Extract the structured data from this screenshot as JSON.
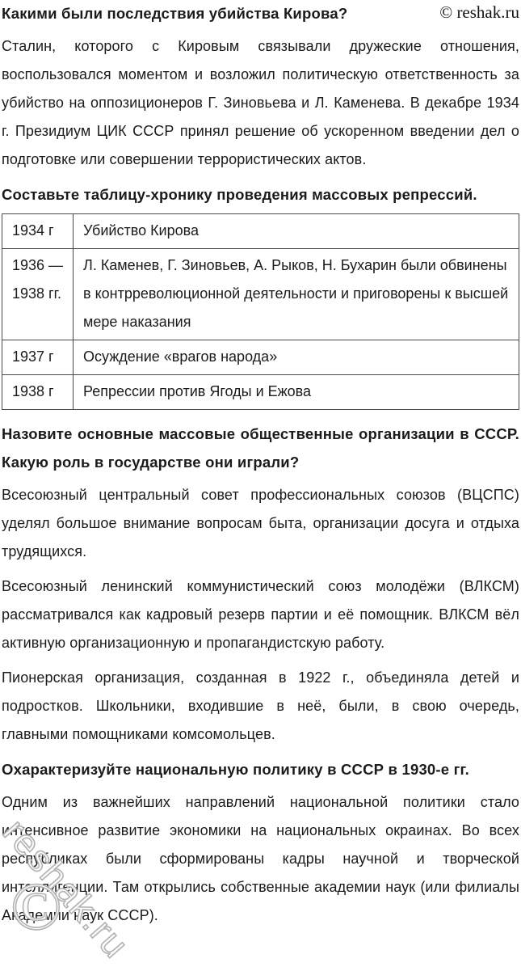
{
  "header": {
    "question": "Какими были последствия убийства Кирова?",
    "brand": "© reshak.ru"
  },
  "headings": {
    "table_task": "Составьте таблицу-хронику проведения массовых репрессий.",
    "organizations": "Назовите основные массовые общественные организации в СССР. Какую роль в государстве они играли?",
    "national_policy": "Охарактеризуйте национальную политику в СССР в 1930-е гг."
  },
  "paragraphs": {
    "kirov_consequences": "Сталин, которого с Кировым связывали дружеские отношения, воспользовался моментом и возложил политическую ответственность за убийство на оппозиционеров Г. Зиновьева и Л. Каменева. В декабре 1934 г. Президиум ЦИК СССР принял решение об ускоренном введении дел о подготовке или совершении террористических актов.",
    "vtssps": "Всесоюзный центральный совет профессиональных союзов (ВЦСПС) уделял большое внимание вопросам быта, организации досуга и отдыха трудящихся.",
    "vlksm": "Всесоюзный ленинский коммунистический союз молодёжи (ВЛКСМ) рассматривался как кадровый резерв партии и её помощник. ВЛКСМ вёл активную организационную и пропагандистскую работу.",
    "pioneers": "Пионерская организация, созданная в 1922 г., объединяла детей и подростков. Школьники, входившие в неё, были, в свою очередь, главными помощниками комсомольцев.",
    "national_policy": "Одним из важнейших направлений национальной политики стало интенсивное развитие экономики на национальных окраинах. Во всех республиках были сформированы кадры научной и творческой интеллигенции. Там открылись собственные академии наук (или филиалы Академии наук СССР)."
  },
  "table": {
    "rows": [
      {
        "year": "1934 г",
        "event": "Убийство Кирова"
      },
      {
        "year": "1936 — 1938 гг.",
        "event": "Л. Каменев, Г. Зиновьев, А. Рыков, Н. Бухарин были обвинены в контрреволюционной деятельности и приговорены к высшей мере наказания"
      },
      {
        "year": "1937 г",
        "event": "Осуждение «врагов народа»"
      },
      {
        "year": "1938 г",
        "event": "Репрессии против Ягоды и Ежова"
      }
    ]
  },
  "watermark": {
    "text": "reshak.ru",
    "symbol": "©"
  },
  "colors": {
    "text": "#1b1b1b",
    "table_border": "#4a4a4a",
    "watermark_outline": "#b2b2b2"
  }
}
